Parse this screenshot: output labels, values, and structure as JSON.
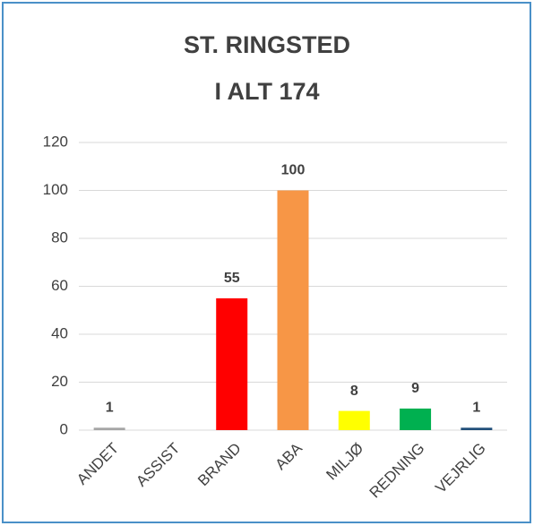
{
  "chart_data": {
    "type": "bar",
    "title": [
      "ST. RINGSTED",
      "I ALT 174"
    ],
    "categories": [
      "ANDET",
      "ASSIST",
      "BRAND",
      "ABA",
      "MILJØ",
      "REDNING",
      "VEJRLIG"
    ],
    "values": [
      1,
      null,
      55,
      100,
      8,
      9,
      1
    ],
    "colors": [
      "#a5a5a5",
      null,
      "#ff0000",
      "#f79646",
      "#ffff00",
      "#00b050",
      "#1f4e79"
    ],
    "ylim": [
      0,
      120
    ],
    "yticks": [
      0,
      20,
      40,
      60,
      80,
      100,
      120
    ],
    "grid": true
  }
}
